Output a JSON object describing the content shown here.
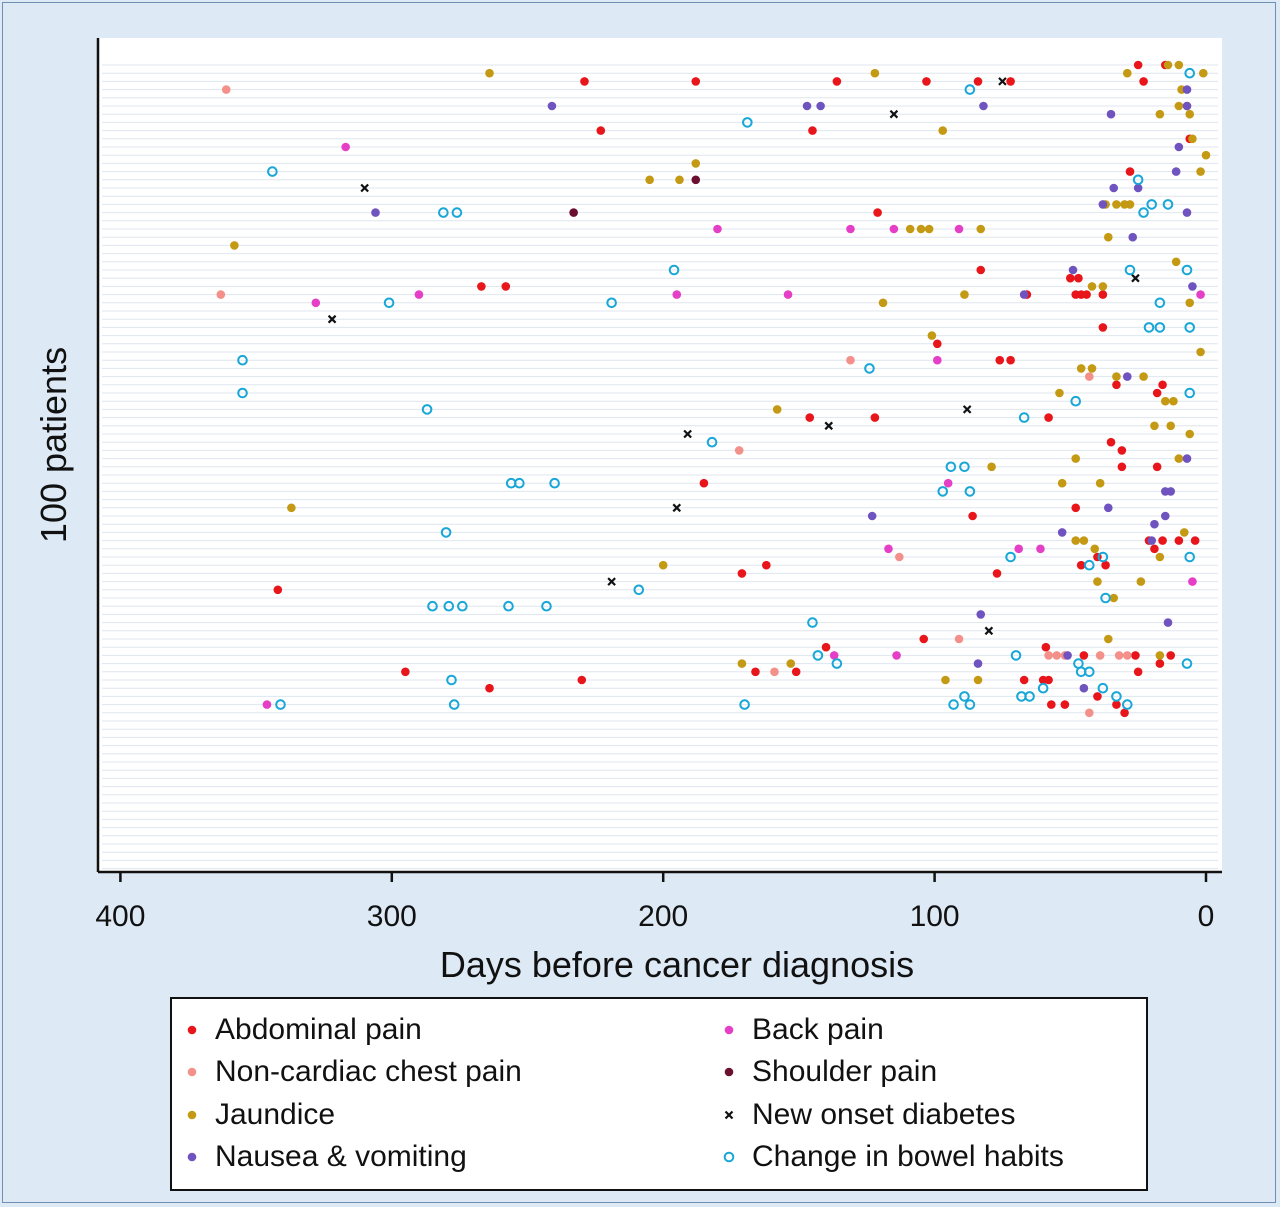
{
  "chart_data": {
    "type": "scatter",
    "title": "",
    "xlabel": "Days before cancer diagnosis",
    "ylabel": "100 patients",
    "x_reversed": true,
    "xlim": [
      400,
      0
    ],
    "xticks": [
      400,
      300,
      200,
      100,
      0
    ],
    "ylim": [
      1,
      100
    ],
    "grid": true,
    "legend_position": "bottom",
    "series": [
      {
        "name": "Abdominal pain",
        "color": "#e8161b",
        "marker": "filled-circle",
        "points": [
          [
            25,
            100
          ],
          [
            15,
            100
          ],
          [
            229,
            98
          ],
          [
            188,
            98
          ],
          [
            136,
            98
          ],
          [
            103,
            98
          ],
          [
            84,
            98
          ],
          [
            72,
            98
          ],
          [
            23,
            98
          ],
          [
            223,
            92
          ],
          [
            145,
            92
          ],
          [
            6,
            91
          ],
          [
            28,
            87
          ],
          [
            121,
            82
          ],
          [
            83,
            75
          ],
          [
            50,
            74
          ],
          [
            47,
            74
          ],
          [
            267,
            73
          ],
          [
            258,
            73
          ],
          [
            48,
            72
          ],
          [
            46,
            72
          ],
          [
            44,
            72
          ],
          [
            38,
            72
          ],
          [
            66,
            72
          ],
          [
            38,
            68
          ],
          [
            99,
            66
          ],
          [
            76,
            64
          ],
          [
            72,
            64
          ],
          [
            33,
            61
          ],
          [
            16,
            61
          ],
          [
            18,
            60
          ],
          [
            146,
            57
          ],
          [
            122,
            57
          ],
          [
            58,
            57
          ],
          [
            35,
            54
          ],
          [
            31,
            53
          ],
          [
            31,
            51
          ],
          [
            18,
            51
          ],
          [
            185,
            49
          ],
          [
            48,
            46
          ],
          [
            86,
            45
          ],
          [
            21,
            42
          ],
          [
            16,
            42
          ],
          [
            10,
            42
          ],
          [
            4,
            42
          ],
          [
            19,
            41
          ],
          [
            40,
            40
          ],
          [
            46,
            39
          ],
          [
            37,
            39
          ],
          [
            162,
            39
          ],
          [
            171,
            38
          ],
          [
            77,
            38
          ],
          [
            342,
            36
          ],
          [
            104,
            30
          ],
          [
            140,
            29
          ],
          [
            59,
            29
          ],
          [
            45,
            28
          ],
          [
            26,
            28
          ],
          [
            13,
            28
          ],
          [
            17,
            27
          ],
          [
            295,
            26
          ],
          [
            166,
            26
          ],
          [
            151,
            26
          ],
          [
            25,
            26
          ],
          [
            230,
            25
          ],
          [
            67,
            25
          ],
          [
            60,
            25
          ],
          [
            58,
            25
          ],
          [
            264,
            24
          ],
          [
            40,
            23
          ],
          [
            57,
            22
          ],
          [
            52,
            22
          ],
          [
            33,
            22
          ],
          [
            30,
            21
          ]
        ]
      },
      {
        "name": "Non-cardiac chest pain",
        "color": "#f4908a",
        "marker": "filled-circle",
        "points": [
          [
            361,
            97
          ],
          [
            363,
            72
          ],
          [
            131,
            64
          ],
          [
            43,
            62
          ],
          [
            172,
            53
          ],
          [
            113,
            40
          ],
          [
            91,
            30
          ],
          [
            58,
            28
          ],
          [
            55,
            28
          ],
          [
            52,
            28
          ],
          [
            39,
            28
          ],
          [
            32,
            28
          ],
          [
            29,
            28
          ],
          [
            159,
            26
          ],
          [
            43,
            21
          ]
        ]
      },
      {
        "name": "Jaundice",
        "color": "#c49a14",
        "marker": "filled-circle",
        "points": [
          [
            14,
            100
          ],
          [
            10,
            100
          ],
          [
            264,
            99
          ],
          [
            122,
            99
          ],
          [
            29,
            99
          ],
          [
            1,
            99
          ],
          [
            9,
            97
          ],
          [
            7,
            95
          ],
          [
            10,
            95
          ],
          [
            17,
            94
          ],
          [
            6,
            94
          ],
          [
            97,
            92
          ],
          [
            5,
            91
          ],
          [
            0,
            89
          ],
          [
            188,
            88
          ],
          [
            2,
            87
          ],
          [
            205,
            86
          ],
          [
            194,
            86
          ],
          [
            37,
            83
          ],
          [
            33,
            83
          ],
          [
            30,
            83
          ],
          [
            28,
            83
          ],
          [
            358,
            78
          ],
          [
            109,
            80
          ],
          [
            105,
            80
          ],
          [
            102,
            80
          ],
          [
            83,
            80
          ],
          [
            36,
            79
          ],
          [
            11,
            76
          ],
          [
            42,
            73
          ],
          [
            38,
            73
          ],
          [
            119,
            71
          ],
          [
            89,
            72
          ],
          [
            6,
            71
          ],
          [
            2,
            65
          ],
          [
            101,
            67
          ],
          [
            46,
            63
          ],
          [
            42,
            63
          ],
          [
            33,
            62
          ],
          [
            23,
            62
          ],
          [
            54,
            60
          ],
          [
            15,
            59
          ],
          [
            12,
            59
          ],
          [
            158,
            58
          ],
          [
            19,
            56
          ],
          [
            13,
            56
          ],
          [
            6,
            55
          ],
          [
            10,
            52
          ],
          [
            48,
            52
          ],
          [
            79,
            51
          ],
          [
            53,
            49
          ],
          [
            39,
            49
          ],
          [
            337,
            46
          ],
          [
            8,
            43
          ],
          [
            48,
            42
          ],
          [
            45,
            42
          ],
          [
            41,
            41
          ],
          [
            17,
            40
          ],
          [
            200,
            39
          ],
          [
            40,
            37
          ],
          [
            24,
            37
          ],
          [
            34,
            35
          ],
          [
            36,
            30
          ],
          [
            171,
            27
          ],
          [
            153,
            27
          ],
          [
            17,
            28
          ],
          [
            96,
            25
          ],
          [
            84,
            25
          ]
        ]
      },
      {
        "name": "Nausea & vomiting",
        "color": "#6f54c0",
        "marker": "filled-circle",
        "points": [
          [
            241,
            95
          ],
          [
            147,
            95
          ],
          [
            142,
            95
          ],
          [
            82,
            95
          ],
          [
            35,
            94
          ],
          [
            7,
            97
          ],
          [
            7,
            95
          ],
          [
            10,
            90
          ],
          [
            11,
            87
          ],
          [
            34,
            85
          ],
          [
            25,
            85
          ],
          [
            38,
            83
          ],
          [
            306,
            82
          ],
          [
            7,
            82
          ],
          [
            27,
            79
          ],
          [
            49,
            75
          ],
          [
            67,
            72
          ],
          [
            5,
            73
          ],
          [
            29,
            62
          ],
          [
            7,
            52
          ],
          [
            15,
            48
          ],
          [
            13,
            48
          ],
          [
            123,
            45
          ],
          [
            36,
            46
          ],
          [
            15,
            45
          ],
          [
            19,
            44
          ],
          [
            53,
            43
          ],
          [
            20,
            42
          ],
          [
            83,
            33
          ],
          [
            14,
            32
          ],
          [
            51,
            28
          ],
          [
            84,
            27
          ],
          [
            45,
            24
          ]
        ]
      },
      {
        "name": "Back pain",
        "color": "#e63fc7",
        "marker": "filled-circle",
        "points": [
          [
            317,
            90
          ],
          [
            180,
            80
          ],
          [
            131,
            80
          ],
          [
            115,
            80
          ],
          [
            91,
            80
          ],
          [
            328,
            71
          ],
          [
            290,
            72
          ],
          [
            195,
            72
          ],
          [
            154,
            72
          ],
          [
            2,
            72
          ],
          [
            99,
            64
          ],
          [
            95,
            49
          ],
          [
            117,
            41
          ],
          [
            69,
            41
          ],
          [
            61,
            41
          ],
          [
            5,
            37
          ],
          [
            137,
            28
          ],
          [
            114,
            28
          ],
          [
            346,
            22
          ]
        ]
      },
      {
        "name": "Shoulder pain",
        "color": "#6b0f2f",
        "marker": "filled-circle",
        "points": [
          [
            188,
            86
          ],
          [
            233,
            82
          ]
        ]
      },
      {
        "name": "New onset diabetes",
        "color": "#111111",
        "marker": "x",
        "points": [
          [
            75,
            98
          ],
          [
            115,
            94
          ],
          [
            310,
            85
          ],
          [
            322,
            69
          ],
          [
            26,
            74
          ],
          [
            88,
            58
          ],
          [
            139,
            56
          ],
          [
            191,
            55
          ],
          [
            195,
            46
          ],
          [
            219,
            37
          ],
          [
            80,
            31
          ]
        ]
      },
      {
        "name": "Change in bowel habits",
        "color": "#19a7d8",
        "marker": "open-circle",
        "points": [
          [
            87,
            97
          ],
          [
            6,
            99
          ],
          [
            169,
            93
          ],
          [
            344,
            87
          ],
          [
            25,
            86
          ],
          [
            281,
            82
          ],
          [
            276,
            82
          ],
          [
            20,
            83
          ],
          [
            14,
            83
          ],
          [
            23,
            82
          ],
          [
            196,
            75
          ],
          [
            28,
            75
          ],
          [
            7,
            75
          ],
          [
            219,
            71
          ],
          [
            301,
            71
          ],
          [
            17,
            71
          ],
          [
            21,
            68
          ],
          [
            17,
            68
          ],
          [
            6,
            68
          ],
          [
            355,
            64
          ],
          [
            355,
            60
          ],
          [
            124,
            63
          ],
          [
            6,
            60
          ],
          [
            287,
            58
          ],
          [
            48,
            59
          ],
          [
            67,
            57
          ],
          [
            182,
            54
          ],
          [
            94,
            51
          ],
          [
            89,
            51
          ],
          [
            256,
            49
          ],
          [
            253,
            49
          ],
          [
            240,
            49
          ],
          [
            97,
            48
          ],
          [
            87,
            48
          ],
          [
            280,
            43
          ],
          [
            72,
            40
          ],
          [
            38,
            40
          ],
          [
            43,
            39
          ],
          [
            6,
            40
          ],
          [
            209,
            36
          ],
          [
            285,
            34
          ],
          [
            279,
            34
          ],
          [
            274,
            34
          ],
          [
            257,
            34
          ],
          [
            243,
            34
          ],
          [
            37,
            35
          ],
          [
            145,
            32
          ],
          [
            143,
            28
          ],
          [
            70,
            28
          ],
          [
            7,
            27
          ],
          [
            136,
            27
          ],
          [
            47,
            27
          ],
          [
            46,
            26
          ],
          [
            43,
            26
          ],
          [
            278,
            25
          ],
          [
            60,
            24
          ],
          [
            38,
            24
          ],
          [
            33,
            23
          ],
          [
            89,
            23
          ],
          [
            68,
            23
          ],
          [
            65,
            23
          ],
          [
            29,
            22
          ],
          [
            341,
            22
          ],
          [
            277,
            22
          ],
          [
            170,
            22
          ],
          [
            93,
            22
          ],
          [
            87,
            22
          ]
        ]
      }
    ]
  },
  "legend": {
    "items": [
      {
        "label": "Abdominal pain",
        "color": "#e8161b",
        "marker": "filled-circle"
      },
      {
        "label": "Non-cardiac chest pain",
        "color": "#f4908a",
        "marker": "filled-circle"
      },
      {
        "label": "Jaundice",
        "color": "#c49a14",
        "marker": "filled-circle"
      },
      {
        "label": "Nausea & vomiting",
        "color": "#6f54c0",
        "marker": "filled-circle"
      },
      {
        "label": "Back pain",
        "color": "#e63fc7",
        "marker": "filled-circle"
      },
      {
        "label": "Shoulder pain",
        "color": "#6b0f2f",
        "marker": "filled-circle"
      },
      {
        "label": "New onset diabetes",
        "color": "#111111",
        "marker": "x"
      },
      {
        "label": "Change in bowel habits",
        "color": "#19a7d8",
        "marker": "open-circle"
      }
    ]
  },
  "colors": {
    "page_background": "#dde9f5",
    "plot_background": "#ffffff",
    "gridline": "#dfe6ee"
  }
}
